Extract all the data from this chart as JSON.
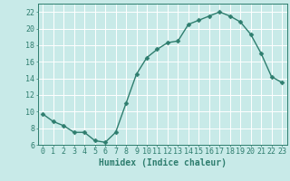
{
  "x": [
    0,
    1,
    2,
    3,
    4,
    5,
    6,
    7,
    8,
    9,
    10,
    11,
    12,
    13,
    14,
    15,
    16,
    17,
    18,
    19,
    20,
    21,
    22,
    23
  ],
  "y": [
    9.7,
    8.8,
    8.3,
    7.5,
    7.5,
    6.5,
    6.3,
    7.5,
    11.0,
    14.5,
    16.5,
    17.5,
    18.3,
    18.5,
    20.5,
    21.0,
    21.5,
    22.0,
    21.5,
    20.8,
    19.3,
    17.0,
    14.2,
    13.5
  ],
  "xlabel": "Humidex (Indice chaleur)",
  "xlim": [
    -0.5,
    23.5
  ],
  "ylim": [
    6,
    23
  ],
  "yticks": [
    6,
    8,
    10,
    12,
    14,
    16,
    18,
    20,
    22
  ],
  "xticks": [
    0,
    1,
    2,
    3,
    4,
    5,
    6,
    7,
    8,
    9,
    10,
    11,
    12,
    13,
    14,
    15,
    16,
    17,
    18,
    19,
    20,
    21,
    22,
    23
  ],
  "line_color": "#2e7d6e",
  "marker_color": "#2e7d6e",
  "bg_color": "#c8eae8",
  "grid_color": "#ffffff",
  "font_color": "#2e7d6e",
  "tick_fontsize": 6,
  "xlabel_fontsize": 7,
  "line_width": 1.0,
  "marker_size": 2.5
}
